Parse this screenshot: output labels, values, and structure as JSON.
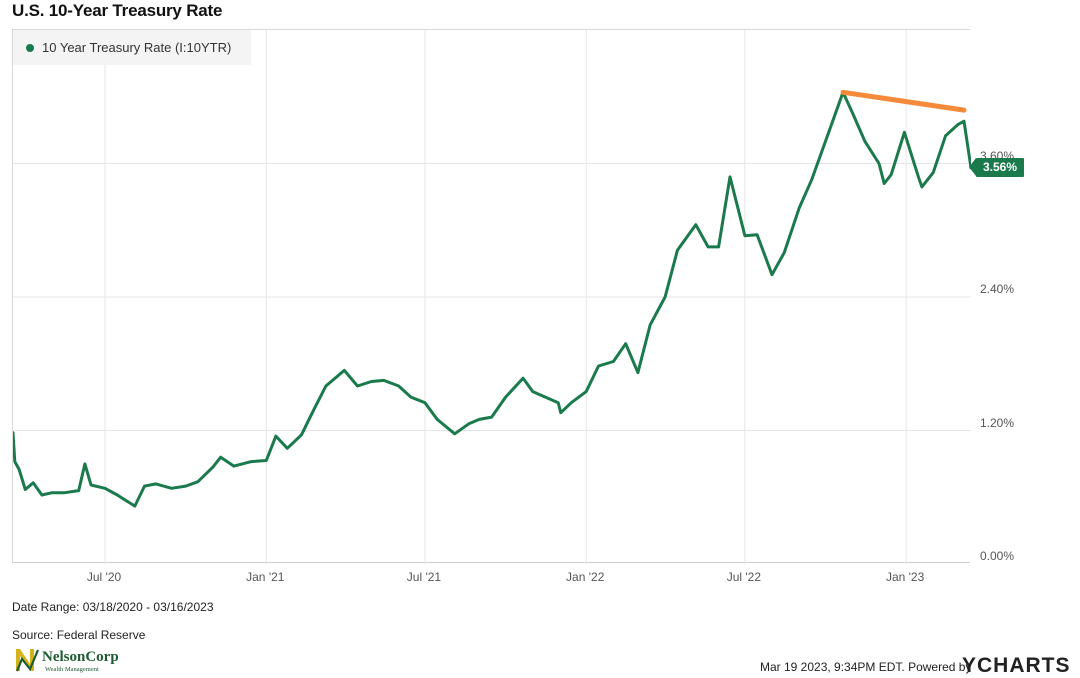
{
  "chart_data": {
    "type": "line",
    "title": "U.S. 10-Year Treasury Rate",
    "legend": {
      "label": "10 Year Treasury Rate (I:10YTR)",
      "placement": "top-left"
    },
    "series": [
      {
        "name": "10 Year Treasury Rate (I:10YTR)",
        "color": "#1a7a4c",
        "x": [
          "2020-03-18",
          "2020-03-20",
          "2020-03-25",
          "2020-04-01",
          "2020-04-10",
          "2020-04-20",
          "2020-05-01",
          "2020-05-15",
          "2020-06-01",
          "2020-06-08",
          "2020-06-15",
          "2020-07-01",
          "2020-07-15",
          "2020-08-04",
          "2020-08-15",
          "2020-08-28",
          "2020-09-15",
          "2020-10-01",
          "2020-10-15",
          "2020-11-01",
          "2020-11-10",
          "2020-11-25",
          "2020-12-15",
          "2021-01-01",
          "2021-01-12",
          "2021-01-25",
          "2021-02-10",
          "2021-02-25",
          "2021-03-10",
          "2021-03-31",
          "2021-04-15",
          "2021-05-01",
          "2021-05-15",
          "2021-06-01",
          "2021-06-15",
          "2021-07-01",
          "2021-07-15",
          "2021-08-04",
          "2021-08-20",
          "2021-09-01",
          "2021-09-15",
          "2021-10-01",
          "2021-10-21",
          "2021-11-01",
          "2021-11-30",
          "2021-12-03",
          "2021-12-15",
          "2022-01-01",
          "2022-01-15",
          "2022-02-01",
          "2022-02-15",
          "2022-03-01",
          "2022-03-15",
          "2022-04-01",
          "2022-04-15",
          "2022-05-06",
          "2022-05-20",
          "2022-06-01",
          "2022-06-14",
          "2022-07-01",
          "2022-07-15",
          "2022-08-01",
          "2022-08-15",
          "2022-09-01",
          "2022-09-15",
          "2022-10-01",
          "2022-10-21",
          "2022-11-01",
          "2022-11-15",
          "2022-12-01",
          "2022-12-07",
          "2022-12-15",
          "2022-12-30",
          "2023-01-15",
          "2023-01-19",
          "2023-02-01",
          "2023-02-15",
          "2023-03-01",
          "2023-03-08",
          "2023-03-16"
        ],
        "y": [
          1.18,
          0.92,
          0.85,
          0.67,
          0.73,
          0.62,
          0.64,
          0.64,
          0.66,
          0.9,
          0.71,
          0.68,
          0.62,
          0.52,
          0.7,
          0.72,
          0.68,
          0.7,
          0.74,
          0.87,
          0.96,
          0.88,
          0.92,
          0.93,
          1.15,
          1.04,
          1.16,
          1.4,
          1.6,
          1.74,
          1.6,
          1.64,
          1.65,
          1.6,
          1.5,
          1.45,
          1.3,
          1.17,
          1.26,
          1.3,
          1.32,
          1.5,
          1.67,
          1.55,
          1.45,
          1.36,
          1.45,
          1.55,
          1.78,
          1.82,
          1.98,
          1.72,
          2.15,
          2.4,
          2.82,
          3.05,
          2.85,
          2.85,
          3.48,
          2.95,
          2.96,
          2.6,
          2.8,
          3.2,
          3.45,
          3.8,
          4.24,
          4.05,
          3.8,
          3.6,
          3.42,
          3.5,
          3.88,
          3.48,
          3.39,
          3.52,
          3.85,
          3.95,
          3.98,
          3.56
        ]
      }
    ],
    "xticks": [
      "Jul '20",
      "Jan '21",
      "Jul '21",
      "Jan '22",
      "Jul '22",
      "Jan '23"
    ],
    "xtick_dates": [
      "2020-07-01",
      "2021-01-01",
      "2021-07-01",
      "2022-01-01",
      "2022-07-01",
      "2023-01-01"
    ],
    "xlim": [
      "2020-03-18",
      "2023-03-16"
    ],
    "yticks": [
      "0.00%",
      "1.20%",
      "2.40%",
      "3.60%"
    ],
    "ytick_values": [
      0,
      1.2,
      2.4,
      3.6
    ],
    "ylim": [
      0,
      4.8
    ],
    "grid": true,
    "last_value": {
      "label": "3.56%",
      "value": 3.56,
      "color": "#1a7a4c"
    },
    "annotations": [
      {
        "type": "trendline",
        "color": "#f58a3b",
        "x": [
          "2022-10-21",
          "2023-03-08"
        ],
        "y": [
          4.24,
          4.08
        ]
      }
    ]
  },
  "footer": {
    "date_range": "Date Range: 03/18/2020 - 03/16/2023",
    "source": "Source: Federal Reserve",
    "timestamp": "Mar 19 2023, 9:34PM EDT.  Powered by",
    "brand": "YCHARTS",
    "logo_text": "NelsonCorp",
    "logo_subtext": "Wealth Management"
  }
}
